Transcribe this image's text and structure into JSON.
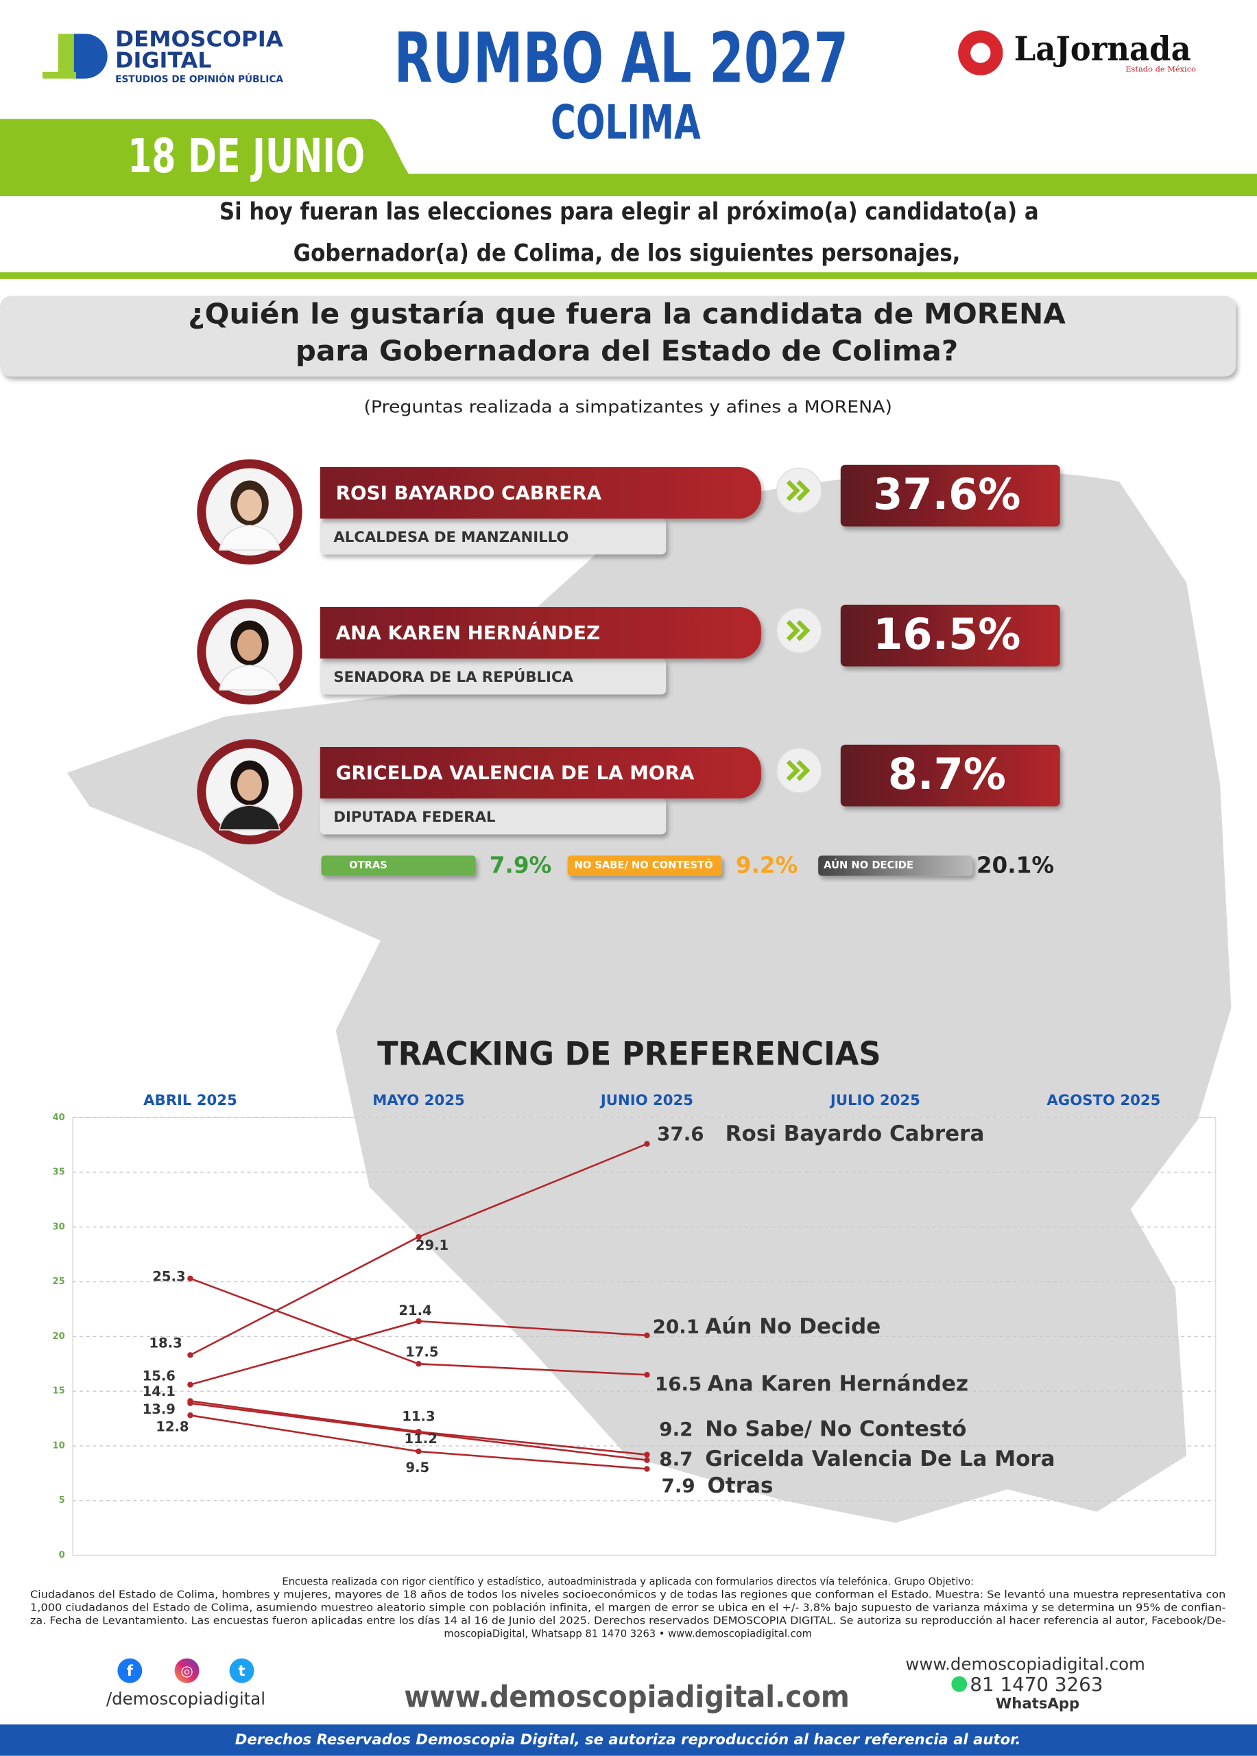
{
  "header": {
    "logo_line1": "DEMOSCOPIA",
    "logo_line2": "DIGITAL",
    "logo_tagline": "ESTUDIOS DE OPINIÓN PÚBLICA",
    "title": "RUMBO AL 2027",
    "subtitle": "COLIMA",
    "date": "18 DE JUNIO",
    "partner": "LaJornada",
    "partner_tagline": "Estado de México"
  },
  "intro": [
    "Si hoy fueran las elecciones para elegir al próximo(a) candidato(a) a",
    "Gobernador(a) de Colima, de los siguientes personajes,"
  ],
  "question": [
    "¿Quién le gustaría que fuera la candidata de MORENA",
    "para Gobernadora del Estado de Colima?"
  ],
  "note": "(Preguntas realizada a simpatizantes y afines a MORENA)",
  "candidates": [
    {
      "name": "ROSI BAYARDO CABRERA",
      "role": "ALCALDESA DE MANZANILLO",
      "value": "37.6%"
    },
    {
      "name": "ANA KAREN HERNÁNDEZ",
      "role": "SENADORA DE LA REPÚBLICA",
      "value": "16.5%"
    },
    {
      "name": "GRICELDA VALENCIA DE LA MORA",
      "role": "DIPUTADA FEDERAL",
      "value": "8.7%"
    }
  ],
  "others": [
    {
      "label": "OTRAS",
      "value": "7.9%"
    },
    {
      "label": "NO SABE/ NO CONTESTÓ",
      "value": "9.2%"
    },
    {
      "label": "AÚN NO DECIDE",
      "value": "20.1%"
    }
  ],
  "chart_data": {
    "type": "line",
    "title": "TRACKING DE PREFERENCIAS",
    "categories": [
      "ABRIL 2025",
      "MAYO 2025",
      "JUNIO 2025",
      "JULIO 2025",
      "AGOSTO 2025"
    ],
    "ylim": [
      0,
      40
    ],
    "yticks": [
      0,
      5,
      10,
      15,
      20,
      25,
      30,
      35,
      40
    ],
    "grid": true,
    "series": [
      {
        "name": "Rosi Bayardo Cabrera",
        "color": "#b3262b",
        "values": [
          18.3,
          29.1,
          37.6,
          null,
          null
        ]
      },
      {
        "name": "Aún No Decide",
        "color": "#b3262b",
        "values": [
          15.6,
          21.4,
          20.1,
          null,
          null
        ]
      },
      {
        "name": "Ana Karen Hernández",
        "color": "#b3262b",
        "values": [
          25.3,
          17.5,
          16.5,
          null,
          null
        ]
      },
      {
        "name": "No Sabe/ No Contestó",
        "color": "#b3262b",
        "values": [
          14.1,
          11.3,
          9.2,
          null,
          null
        ]
      },
      {
        "name": "Gricelda Valencia De La Mora",
        "color": "#b3262b",
        "values": [
          13.9,
          11.2,
          8.7,
          null,
          null
        ]
      },
      {
        "name": "Otras",
        "color": "#b3262b",
        "values": [
          12.8,
          9.5,
          7.9,
          null,
          null
        ]
      }
    ]
  },
  "footnote": [
    "Encuesta realizada con rigor científico y estadístico, autoadministrada y aplicada con formularios directos vía telefónica. Grupo Objetivo:",
    "Ciudadanos del Estado de Colima, hombres y mujeres, mayores de 18 años de todos los niveles socioeconómicos y de todas las regiones que conforman el Estado. Muestra: Se levantó una muestra representativa con",
    "1,000 ciudadanos del Estado de Colima, asumiendo muestreo aleatorio simple con población infinita, el margen de error se ubica en el +/- 3.8% bajo supuesto de varianza máxima y se determina un 95% de confian-",
    "za. Fecha de Levantamiento. Las encuestas fueron aplicadas entre los días 14 al 16 de Junio del 2025. Derechos reservados DEMOSCOPIA DIGITAL. Se autoriza su reproducción al hacer referencia al autor, Facebook/De-",
    "moscopiaDigital, Whatsapp 81 1470 3263 • www.demoscopiadigital.com"
  ],
  "social_handle": "/demoscopiadigital",
  "website_big": "www.demoscopiadigital.com",
  "contact": {
    "website": "www.demoscopiadigital.com",
    "phone": "81 1470 3263",
    "whatsapp": "WhatsApp"
  },
  "footer": "Derechos Reservados Demoscopia Digital, se autoriza reproducción al hacer referencia al autor."
}
